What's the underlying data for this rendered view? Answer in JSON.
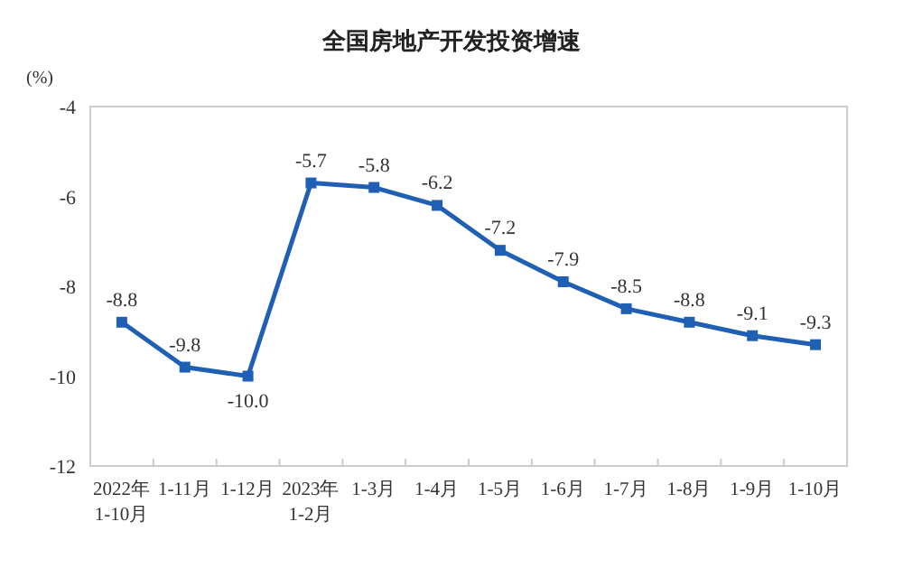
{
  "chart_data": {
    "type": "line",
    "title": "全国房地产开发投资增速",
    "ylabel": "(%)",
    "categories": [
      "2022年\n1-10月",
      "1-11月",
      "1-12月",
      "2023年\n1-2月",
      "1-3月",
      "1-4月",
      "1-5月",
      "1-6月",
      "1-7月",
      "1-8月",
      "1-9月",
      "1-10月"
    ],
    "series": [
      {
        "color": "#1f5fb4",
        "values": [
          -8.8,
          -9.8,
          -10.0,
          -5.7,
          -5.8,
          -6.2,
          -7.2,
          -7.9,
          -8.5,
          -8.8,
          -9.1,
          -9.3
        ],
        "value_labels": [
          "-8.8",
          "-9.8",
          "-10.0",
          "-5.7",
          "-5.8",
          "-6.2",
          "-7.2",
          "-7.9",
          "-8.5",
          "-8.8",
          "-9.1",
          "-9.3"
        ]
      }
    ],
    "ylim": [
      -12,
      -4
    ],
    "yticks": [
      -4,
      -6,
      -8,
      -10,
      -12
    ],
    "marker": "square",
    "line_style": "solid",
    "grid": false
  }
}
